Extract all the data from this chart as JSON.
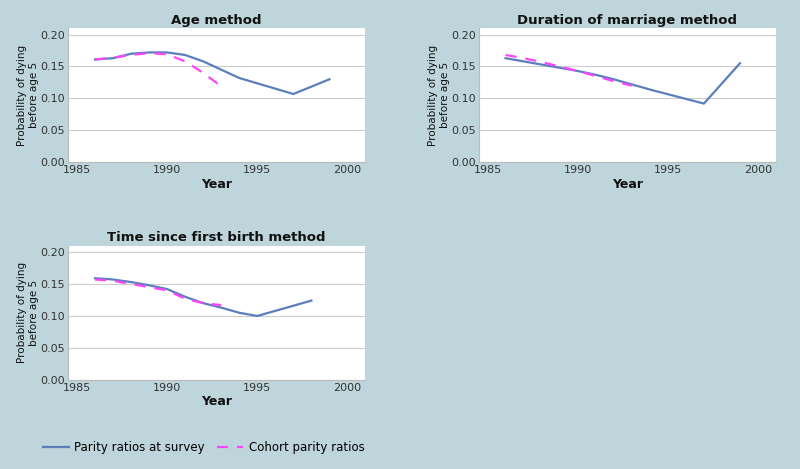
{
  "background_color": "#bdd5db",
  "plot_bg_color": "#ffffff",
  "title1": "Age method",
  "title2": "Duration of marriage method",
  "title3": "Time since first birth method",
  "xlabel": "Year",
  "ylabel": "Probability of dying\nbefore age 5",
  "ylim": [
    0.0,
    0.21
  ],
  "yticks": [
    0.0,
    0.05,
    0.1,
    0.15,
    0.2
  ],
  "xlim": [
    1984.5,
    2001
  ],
  "xticks": [
    1985,
    1990,
    1995,
    2000
  ],
  "survey_color": "#5b7fbb",
  "cohort_color": "#ff44ff",
  "legend_survey": "Parity ratios at survey",
  "legend_cohort": "Cohort parity ratios",
  "age_survey_x": [
    1986,
    1987,
    1988,
    1989,
    1990,
    1991,
    1992,
    1993,
    1994,
    1997,
    1999
  ],
  "age_survey_y": [
    0.161,
    0.163,
    0.17,
    0.172,
    0.172,
    0.168,
    0.158,
    0.145,
    0.132,
    0.107,
    0.13
  ],
  "age_cohort_x": [
    1986,
    1987,
    1988,
    1989,
    1990,
    1991,
    1992,
    1993
  ],
  "age_cohort_y": [
    0.161,
    0.164,
    0.168,
    0.171,
    0.169,
    0.158,
    0.14,
    0.119
  ],
  "dom_survey_x": [
    1986,
    1987,
    1988,
    1989,
    1990,
    1991,
    1992,
    1993,
    1994,
    1997,
    1999
  ],
  "dom_survey_y": [
    0.163,
    0.158,
    0.153,
    0.148,
    0.143,
    0.137,
    0.13,
    0.122,
    0.114,
    0.092,
    0.155
  ],
  "dom_cohort_x": [
    1986,
    1987,
    1988,
    1989,
    1990,
    1991,
    1992,
    1993
  ],
  "dom_cohort_y": [
    0.168,
    0.163,
    0.157,
    0.15,
    0.143,
    0.135,
    0.127,
    0.12
  ],
  "tsfb_survey_x": [
    1986,
    1987,
    1988,
    1989,
    1990,
    1991,
    1992,
    1993,
    1994,
    1995,
    1998
  ],
  "tsfb_survey_y": [
    0.159,
    0.157,
    0.153,
    0.148,
    0.142,
    0.13,
    0.12,
    0.113,
    0.105,
    0.1,
    0.124
  ],
  "tsfb_cohort_x": [
    1986,
    1987,
    1988,
    1989,
    1990,
    1991,
    1992,
    1993
  ],
  "tsfb_cohort_y": [
    0.157,
    0.155,
    0.15,
    0.145,
    0.14,
    0.127,
    0.12,
    0.117
  ]
}
